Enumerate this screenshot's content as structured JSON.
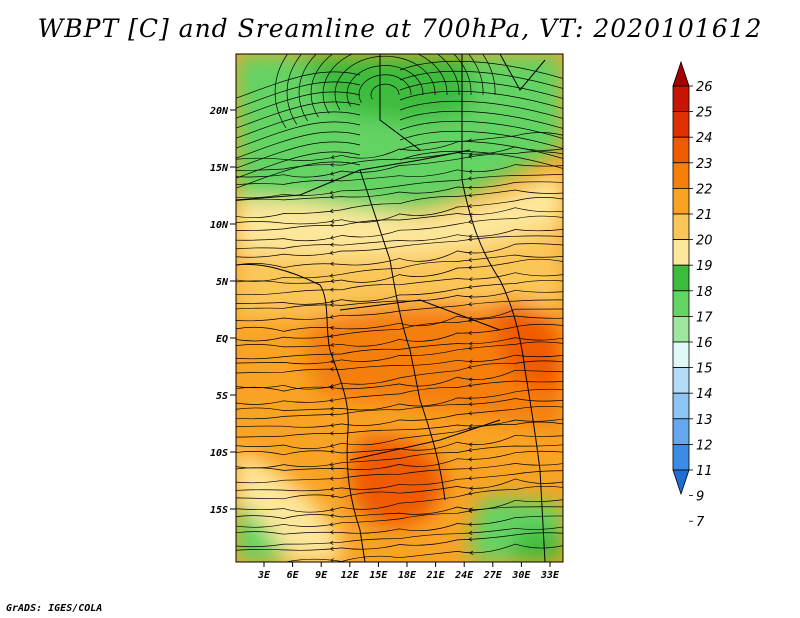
{
  "title": "WBPT [C] and Sreamline at 700hPa, VT: 2020101612",
  "footer": "GrADS: IGES/COLA",
  "map": {
    "lat_labels": [
      "20N",
      "15N",
      "10N",
      "5N",
      "EQ",
      "5S",
      "10S",
      "15S"
    ],
    "lon_labels": [
      "3E",
      "6E",
      "9E",
      "12E",
      "15E",
      "18E",
      "21E",
      "24E",
      "27E",
      "30E",
      "33E"
    ]
  },
  "colorbar": {
    "labels": [
      "26",
      "25",
      "24",
      "23",
      "22",
      "21",
      "20",
      "19",
      "18",
      "17",
      "16",
      "15",
      "14",
      "13",
      "12",
      "11",
      "9",
      "7"
    ],
    "colors": [
      "#a50000",
      "#c81400",
      "#e03000",
      "#f05a00",
      "#f57f0a",
      "#f9a325",
      "#fbc659",
      "#fde79b",
      "#3cbc3c",
      "#63d363",
      "#9ee69e",
      "#e0f8f8",
      "#b4dcf8",
      "#8cc4f5",
      "#64a8f0",
      "#3c8ce6",
      "#1e6ed2"
    ]
  }
}
